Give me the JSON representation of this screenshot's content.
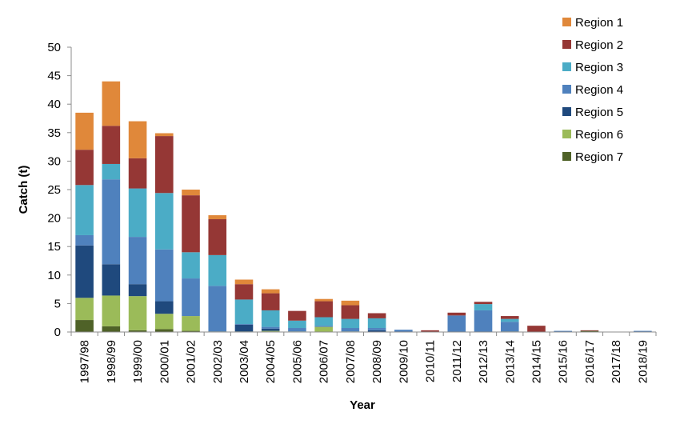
{
  "chart_data": {
    "type": "bar",
    "stacked": true,
    "title": "",
    "xlabel": "Year",
    "ylabel": "Catch (t)",
    "ylim": [
      0,
      50
    ],
    "yticks": [
      0,
      5,
      10,
      15,
      20,
      25,
      30,
      35,
      40,
      45,
      50
    ],
    "grid": false,
    "legend_position": "top-right",
    "categories": [
      "1997/98",
      "1998/99",
      "1999/00",
      "2000/01",
      "2001/02",
      "2002/03",
      "2003/04",
      "2004/05",
      "2005/06",
      "2006/07",
      "2007/08",
      "2008/09",
      "2009/10",
      "2010/11",
      "2011/12",
      "2012/13",
      "2013/14",
      "2014/15",
      "2015/16",
      "2016/17",
      "2017/18",
      "2018/19"
    ],
    "series": [
      {
        "name": "Region 7",
        "color": "#4f6228",
        "values": [
          2.1,
          1.0,
          0.3,
          0.5,
          0.2,
          0.1,
          0.1,
          0.1,
          0,
          0,
          0,
          0,
          0,
          0,
          0,
          0,
          0.1,
          0,
          0,
          0.2,
          0,
          0
        ]
      },
      {
        "name": "Region 6",
        "color": "#9bbb59",
        "values": [
          3.9,
          5.4,
          6.0,
          2.7,
          2.6,
          0,
          0,
          0.1,
          0.1,
          0.9,
          0.1,
          0,
          0,
          0,
          0,
          0,
          0,
          0,
          0,
          0,
          0,
          0
        ]
      },
      {
        "name": "Region 5",
        "color": "#1f497d",
        "values": [
          9.2,
          5.5,
          2.1,
          2.2,
          0,
          0,
          1.2,
          0.4,
          0,
          0,
          0,
          0.3,
          0,
          0,
          0,
          0,
          0,
          0,
          0,
          0,
          0,
          0
        ]
      },
      {
        "name": "Region 4",
        "color": "#4f81bd",
        "values": [
          1.8,
          14.9,
          8.3,
          9.1,
          6.6,
          8.0,
          0.1,
          0.3,
          0.6,
          0.2,
          0.6,
          0.4,
          0.4,
          0,
          2.9,
          3.8,
          1.7,
          0,
          0.2,
          0,
          0,
          0.2
        ]
      },
      {
        "name": "Region 3",
        "color": "#4bacc6",
        "values": [
          8.8,
          2.7,
          8.5,
          9.9,
          4.6,
          5.4,
          4.3,
          2.9,
          1.3,
          1.5,
          1.6,
          1.7,
          0,
          0,
          0,
          1.1,
          0.5,
          0,
          0,
          0,
          0,
          0
        ]
      },
      {
        "name": "Region 2",
        "color": "#953735",
        "values": [
          6.2,
          6.7,
          5.3,
          10.0,
          10.0,
          6.3,
          2.7,
          3.0,
          1.7,
          2.8,
          2.4,
          0.9,
          0,
          0.3,
          0.5,
          0.4,
          0.5,
          1.1,
          0,
          0.1,
          0,
          0
        ]
      },
      {
        "name": "Region 1",
        "color": "#e0883a",
        "values": [
          6.5,
          7.8,
          6.5,
          0.5,
          1.0,
          0.7,
          0.8,
          0.7,
          0,
          0.4,
          0.8,
          0,
          0,
          0,
          0,
          0,
          0,
          0,
          0,
          0,
          0,
          0
        ]
      }
    ],
    "legend_order": [
      "Region 1",
      "Region 2",
      "Region 3",
      "Region 4",
      "Region 5",
      "Region 6",
      "Region 7"
    ]
  }
}
